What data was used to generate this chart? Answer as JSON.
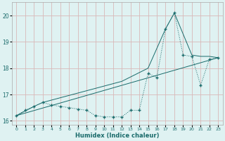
{
  "xlabel": "Humidex (Indice chaleur)",
  "background_color": "#dff2f2",
  "grid_color": "#c8e0e0",
  "line_color": "#1a6b6b",
  "xlim": [
    -0.5,
    23.5
  ],
  "ylim": [
    15.85,
    20.5
  ],
  "yticks": [
    16,
    17,
    18,
    19,
    20
  ],
  "xticks": [
    0,
    1,
    2,
    3,
    4,
    5,
    6,
    7,
    8,
    9,
    10,
    11,
    12,
    13,
    14,
    15,
    16,
    17,
    18,
    19,
    20,
    21,
    22,
    23
  ],
  "series1_x": [
    0,
    1,
    2,
    3,
    4,
    5,
    6,
    7,
    8,
    9,
    10,
    11,
    12,
    13,
    14,
    15,
    16,
    17,
    18,
    19,
    20,
    21,
    22,
    23
  ],
  "series1_y": [
    16.2,
    16.4,
    16.55,
    16.7,
    16.6,
    16.55,
    16.5,
    16.45,
    16.4,
    16.2,
    16.15,
    16.15,
    16.15,
    16.4,
    16.4,
    17.8,
    17.65,
    19.5,
    20.1,
    18.5,
    18.45,
    17.35,
    18.35,
    18.4
  ],
  "series2_x": [
    0,
    23
  ],
  "series2_y": [
    16.2,
    18.4
  ],
  "series3_x": [
    0,
    2,
    3,
    12,
    15,
    17,
    18,
    20,
    21,
    22,
    23
  ],
  "series3_y": [
    16.2,
    16.55,
    16.7,
    17.5,
    18.0,
    19.5,
    20.1,
    18.5,
    18.45,
    18.45,
    18.4
  ]
}
